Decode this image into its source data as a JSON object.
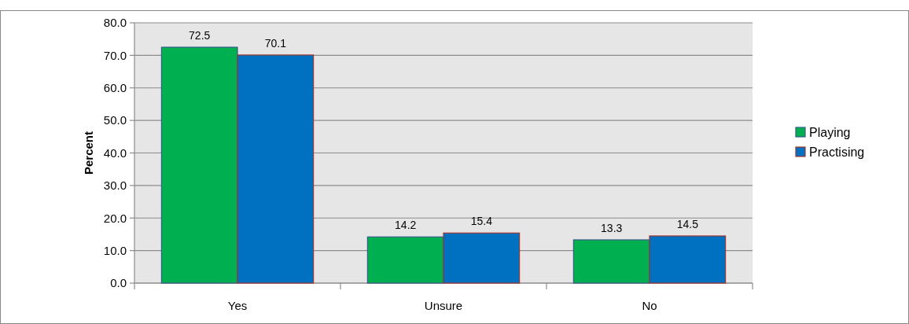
{
  "chart_data": {
    "type": "bar",
    "ylabel": "Percent",
    "categories": [
      "Yes",
      "Unsure",
      "No"
    ],
    "series": [
      {
        "name": "Playing",
        "color": "#00b050",
        "values": [
          72.5,
          14.2,
          13.3
        ]
      },
      {
        "name": "Practising",
        "color": "#0070c0",
        "values": [
          70.1,
          15.4,
          14.5
        ]
      }
    ],
    "ylim": [
      0,
      80
    ],
    "yticks": [
      {
        "value": 0,
        "label": "0.0"
      },
      {
        "value": 10,
        "label": "10.0"
      },
      {
        "value": 20,
        "label": "20.0"
      },
      {
        "value": 30,
        "label": "30.0"
      },
      {
        "value": 40,
        "label": "40.0"
      },
      {
        "value": 50,
        "label": "50.0"
      },
      {
        "value": 60,
        "label": "60.0"
      },
      {
        "value": 70,
        "label": "70.0"
      },
      {
        "value": 80,
        "label": "80.0"
      }
    ],
    "grid": "y",
    "legend": "right",
    "data_labels": true
  }
}
